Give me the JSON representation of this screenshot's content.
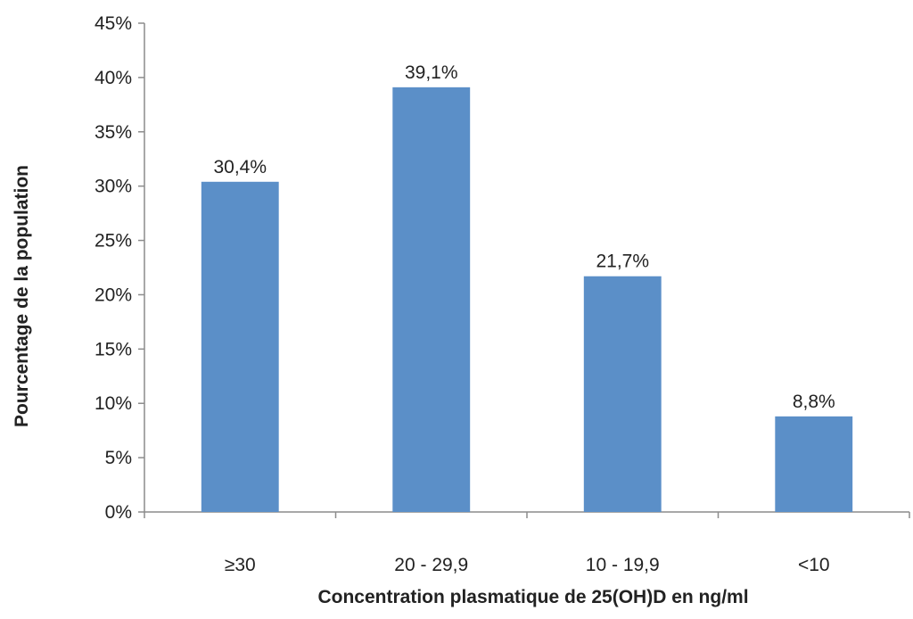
{
  "chart_data": {
    "type": "bar",
    "title": "",
    "xlabel": "Concentration plasmatique de 25(OH)D en ng/ml",
    "ylabel": "Pourcentage de la population",
    "categories": [
      "≥30",
      "20 - 29,9",
      "10 - 19,9",
      "<10"
    ],
    "values": [
      30.4,
      39.1,
      21.7,
      8.8
    ],
    "data_labels": [
      "30,4%",
      "39,1%",
      "21,7%",
      "8,8%"
    ],
    "ylim": [
      0,
      45
    ],
    "yticks": [
      0,
      5,
      10,
      15,
      20,
      25,
      30,
      35,
      40,
      45
    ],
    "ytick_labels": [
      "0%",
      "5%",
      "10%",
      "15%",
      "20%",
      "25%",
      "30%",
      "35%",
      "40%",
      "45%"
    ],
    "grid": false,
    "legend": "none",
    "bar_color": "#5b8fc8"
  }
}
